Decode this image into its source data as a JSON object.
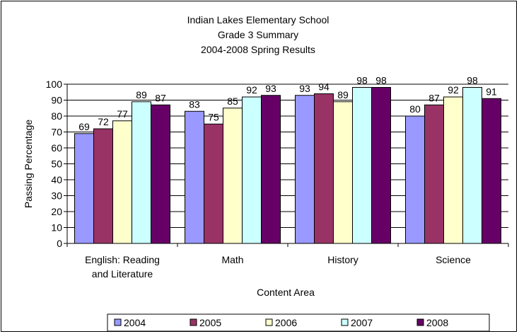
{
  "chart_data": {
    "type": "bar",
    "title": [
      "Indian Lakes Elementary School",
      "Grade 3 Summary",
      "2004-2008 Spring Results"
    ],
    "xlabel": "Content Area",
    "ylabel": "Passing Percentage",
    "ylim": [
      0,
      100
    ],
    "yticks": [
      "0",
      "10",
      "20",
      "30",
      "40",
      "50",
      "60",
      "70",
      "80",
      "90",
      "100"
    ],
    "grid": true,
    "legend_position": "bottom",
    "categories": [
      [
        "English: Reading",
        "and Literature"
      ],
      [
        "Math"
      ],
      [
        "History"
      ],
      [
        "Science"
      ]
    ],
    "series": [
      {
        "name": "2004",
        "color": "#9999ff",
        "values": [
          69,
          83,
          93,
          80
        ]
      },
      {
        "name": "2005",
        "color": "#993366",
        "values": [
          72,
          75,
          94,
          87
        ]
      },
      {
        "name": "2006",
        "color": "#ffffcc",
        "values": [
          77,
          85,
          89,
          92
        ]
      },
      {
        "name": "2007",
        "color": "#ccffff",
        "values": [
          89,
          92,
          98,
          98
        ]
      },
      {
        "name": "2008",
        "color": "#660066",
        "values": [
          87,
          93,
          98,
          91
        ]
      }
    ]
  }
}
